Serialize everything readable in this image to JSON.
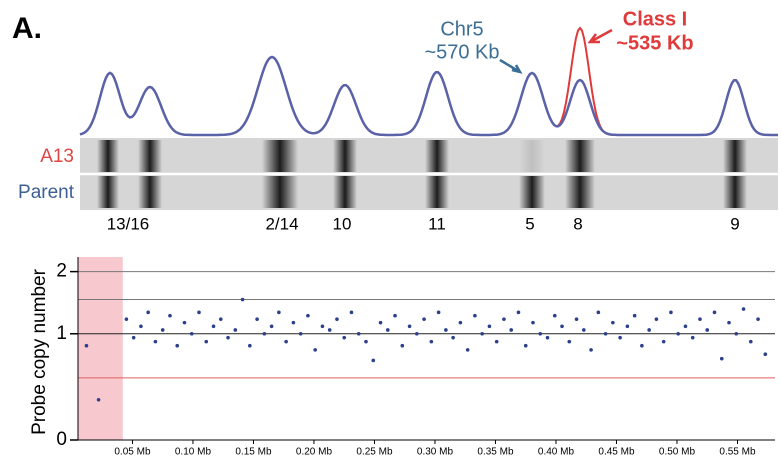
{
  "figure_label": "A.",
  "gel": {
    "annotations": [
      {
        "line1": "Chr5",
        "line2": "~570 Kb"
      },
      {
        "line1": "Class I",
        "line2": "~535 Kb"
      }
    ],
    "lanes": [
      "A13",
      "Parent"
    ],
    "bands": [
      "13/16",
      "2/14",
      "10",
      "11",
      "5",
      "8",
      "9"
    ]
  },
  "chart_data": {
    "type": "scatter",
    "y_label": "Probe copy number",
    "yscale": "log1p",
    "ylim": [
      0,
      2.3
    ],
    "yticks": [
      0,
      1,
      2
    ],
    "xlim": [
      0.005,
      0.581
    ],
    "xticks": [
      {
        "value": 0.05,
        "label": "0.05 Mb"
      },
      {
        "value": 0.1,
        "label": "0.10 Mb"
      },
      {
        "value": 0.15,
        "label": "0.15 Mb"
      },
      {
        "value": 0.2,
        "label": "0.20 Mb"
      },
      {
        "value": 0.25,
        "label": "0.25 Mb"
      },
      {
        "value": 0.3,
        "label": "0.30 Mb"
      },
      {
        "value": 0.35,
        "label": "0.35 Mb"
      },
      {
        "value": 0.4,
        "label": "0.40 Mb"
      },
      {
        "value": 0.45,
        "label": "0.45 Mb"
      },
      {
        "value": 0.5,
        "label": "0.50 Mb"
      },
      {
        "value": 0.55,
        "label": "0.55 Mb"
      }
    ],
    "shaded_region": {
      "x": [
        0.005,
        0.042
      ],
      "color": "#f7c9cf"
    },
    "reference_lines": [
      {
        "value": 2,
        "color": "#777777"
      },
      {
        "value": 1.5,
        "color": "#777777"
      },
      {
        "value": 1,
        "color": "#222222"
      },
      {
        "value": 0.5,
        "color": "#e06060"
      }
    ],
    "color": "#2b3f8c",
    "x": [
      0.012,
      0.022,
      0.045,
      0.051,
      0.057,
      0.063,
      0.069,
      0.075,
      0.081,
      0.087,
      0.093,
      0.099,
      0.105,
      0.111,
      0.117,
      0.123,
      0.129,
      0.135,
      0.141,
      0.147,
      0.153,
      0.159,
      0.165,
      0.171,
      0.177,
      0.183,
      0.189,
      0.195,
      0.201,
      0.207,
      0.213,
      0.219,
      0.225,
      0.231,
      0.237,
      0.243,
      0.249,
      0.255,
      0.261,
      0.267,
      0.273,
      0.279,
      0.285,
      0.291,
      0.297,
      0.303,
      0.309,
      0.315,
      0.321,
      0.327,
      0.333,
      0.339,
      0.345,
      0.351,
      0.357,
      0.363,
      0.369,
      0.375,
      0.381,
      0.387,
      0.393,
      0.399,
      0.405,
      0.411,
      0.417,
      0.423,
      0.429,
      0.435,
      0.441,
      0.447,
      0.453,
      0.459,
      0.465,
      0.471,
      0.477,
      0.483,
      0.489,
      0.495,
      0.501,
      0.507,
      0.513,
      0.519,
      0.525,
      0.531,
      0.537,
      0.543,
      0.549,
      0.555,
      0.561,
      0.567,
      0.573
    ],
    "values": [
      0.85,
      0.3,
      1.2,
      0.95,
      1.1,
      1.3,
      0.9,
      1.05,
      1.25,
      0.85,
      1.15,
      1.0,
      1.3,
      0.9,
      1.1,
      1.2,
      0.95,
      1.05,
      1.5,
      0.85,
      1.2,
      1.0,
      1.1,
      1.3,
      0.9,
      1.15,
      1.0,
      1.25,
      0.8,
      1.1,
      1.05,
      1.2,
      0.95,
      1.3,
      1.0,
      0.9,
      0.68,
      1.15,
      1.05,
      1.25,
      0.85,
      1.1,
      1.0,
      1.2,
      0.9,
      1.3,
      1.05,
      0.95,
      1.15,
      0.8,
      1.25,
      1.0,
      1.1,
      0.9,
      1.2,
      1.05,
      1.3,
      0.85,
      1.15,
      1.0,
      0.95,
      1.25,
      1.1,
      0.9,
      1.2,
      1.05,
      0.8,
      1.3,
      1.0,
      1.15,
      0.95,
      1.1,
      1.25,
      0.85,
      1.05,
      1.2,
      0.9,
      1.3,
      1.0,
      1.1,
      0.95,
      1.2,
      1.05,
      1.3,
      0.7,
      1.15,
      1.0,
      1.35,
      0.9,
      1.2,
      0.75
    ]
  }
}
